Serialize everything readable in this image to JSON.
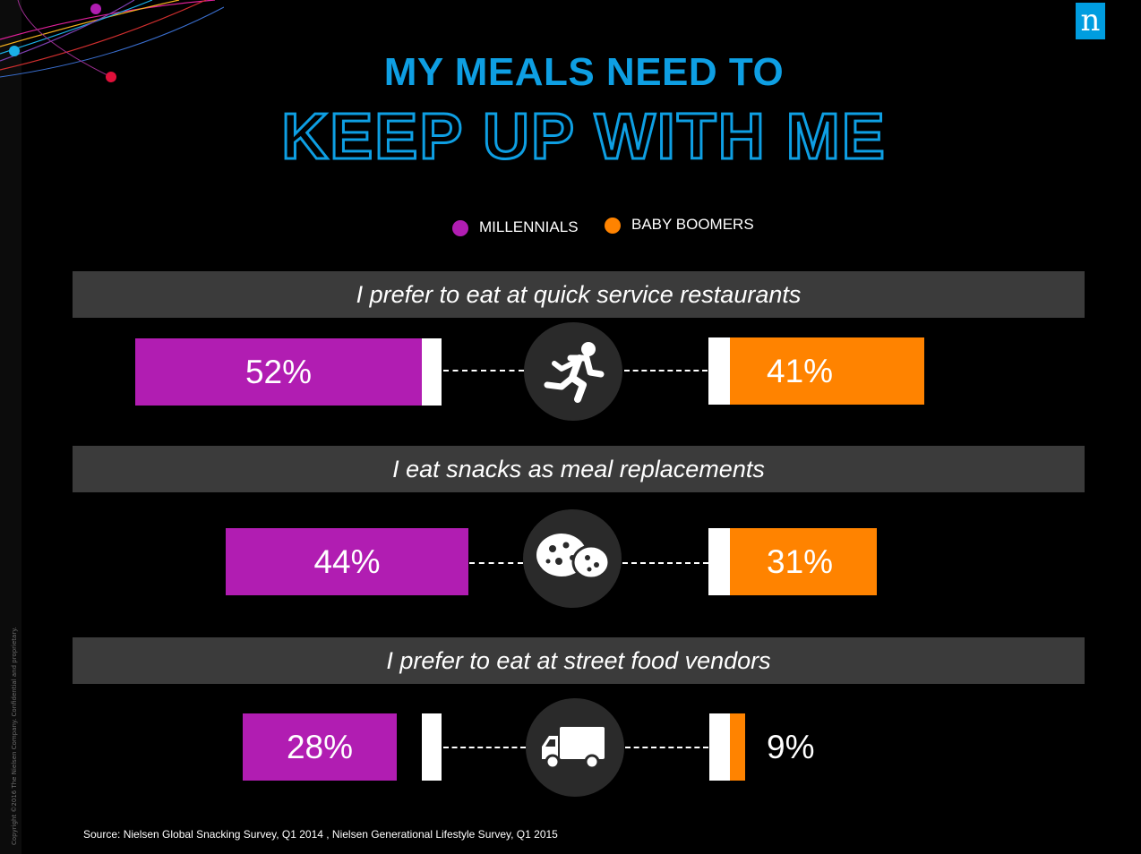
{
  "page": {
    "title_line1": "MY MEALS NEED TO",
    "title_line2": "KEEP UP WITH ME",
    "logo_letter": "n",
    "source": "Source: Nielsen Global Snacking Survey, Q1 2014 , Nielsen Generational Lifestyle Survey, Q1 2015",
    "copyright": "Copyright ©2016 The Nielsen Company. Confidential and proprietary.",
    "icons": [
      "running-person-icon",
      "cookies-icon",
      "delivery-truck-icon"
    ]
  },
  "colors": {
    "millennials": "#b11db2",
    "baby_boomers": "#ff8300",
    "title_blue": "#0e9fe3",
    "banner": "#3b3b3b"
  },
  "chart_data": {
    "type": "bar",
    "legend": [
      "MILLENNIALS",
      "BABY BOOMERS"
    ],
    "categories": [
      "I prefer to eat at quick service restaurants",
      "I eat snacks as meal replacements",
      "I prefer to eat at street food vendors"
    ],
    "series": [
      {
        "name": "MILLENNIALS",
        "values": [
          52,
          44,
          28
        ],
        "labels": [
          "52%",
          "44%",
          "28%"
        ]
      },
      {
        "name": "BABY BOOMERS",
        "values": [
          41,
          31,
          9
        ],
        "labels": [
          "41%",
          "31%",
          "9%"
        ]
      }
    ],
    "unit": "%"
  }
}
